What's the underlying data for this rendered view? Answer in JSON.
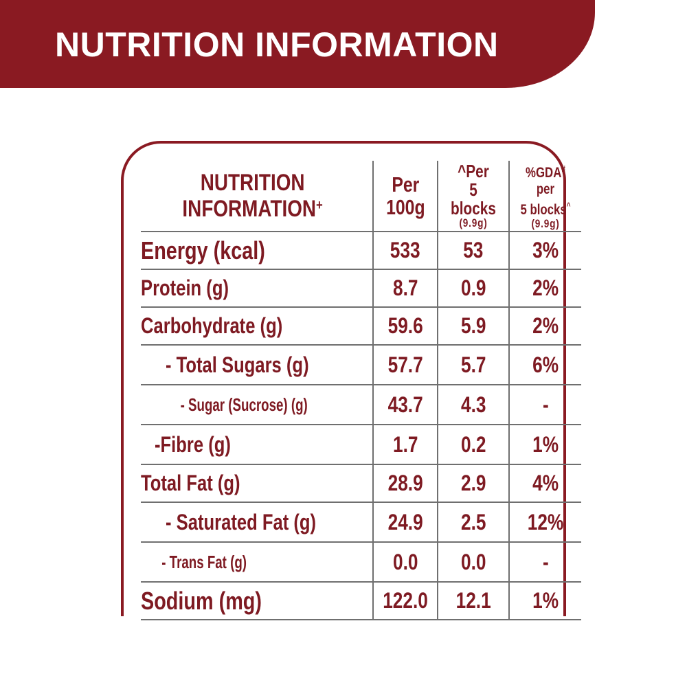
{
  "banner": {
    "title": "NUTRITION INFORMATION"
  },
  "table": {
    "header": {
      "title_line1": "NUTRITION",
      "title_line2": "INFORMATION",
      "title_mark": "+",
      "per100_line1": "Per",
      "per100_line2": "100g",
      "per_serving_line1": "^Per",
      "per_serving_line2": "5 blocks",
      "per_serving_line3": "(9.9g)",
      "gda_line1_a": "%GDA",
      "gda_line1_mark": "#",
      "gda_line1_b": " per",
      "gda_line2_a": "5 blocks",
      "gda_line2_mark": "^",
      "gda_line3": "(9.9g)"
    },
    "rows": [
      {
        "label": "Energy (kcal)",
        "per100": "533",
        "per_serving": "53",
        "gda": "3%"
      },
      {
        "label": "Protein (g)",
        "per100": "8.7",
        "per_serving": "0.9",
        "gda": "2%"
      },
      {
        "label": "Carbohydrate (g)",
        "per100": "59.6",
        "per_serving": "5.9",
        "gda": "2%"
      },
      {
        "label": "- Total Sugars (g)",
        "per100": "57.7",
        "per_serving": "5.7",
        "gda": "6%"
      },
      {
        "label": "- Sugar (Sucrose) (g)",
        "per100": "43.7",
        "per_serving": "4.3",
        "gda": "-"
      },
      {
        "label": "-Fibre (g)",
        "per100": "1.7",
        "per_serving": "0.2",
        "gda": "1%"
      },
      {
        "label": "Total Fat (g)",
        "per100": "28.9",
        "per_serving": "2.9",
        "gda": "4%"
      },
      {
        "label": "- Saturated Fat (g)",
        "per100": "24.9",
        "per_serving": "2.5",
        "gda": "12%"
      },
      {
        "label": "- Trans Fat (g)",
        "per100": "0.0",
        "per_serving": "0.0",
        "gda": "-"
      },
      {
        "label": "Sodium (mg)",
        "per100": "122.0",
        "per_serving": "12.1",
        "gda": "1%"
      }
    ]
  }
}
